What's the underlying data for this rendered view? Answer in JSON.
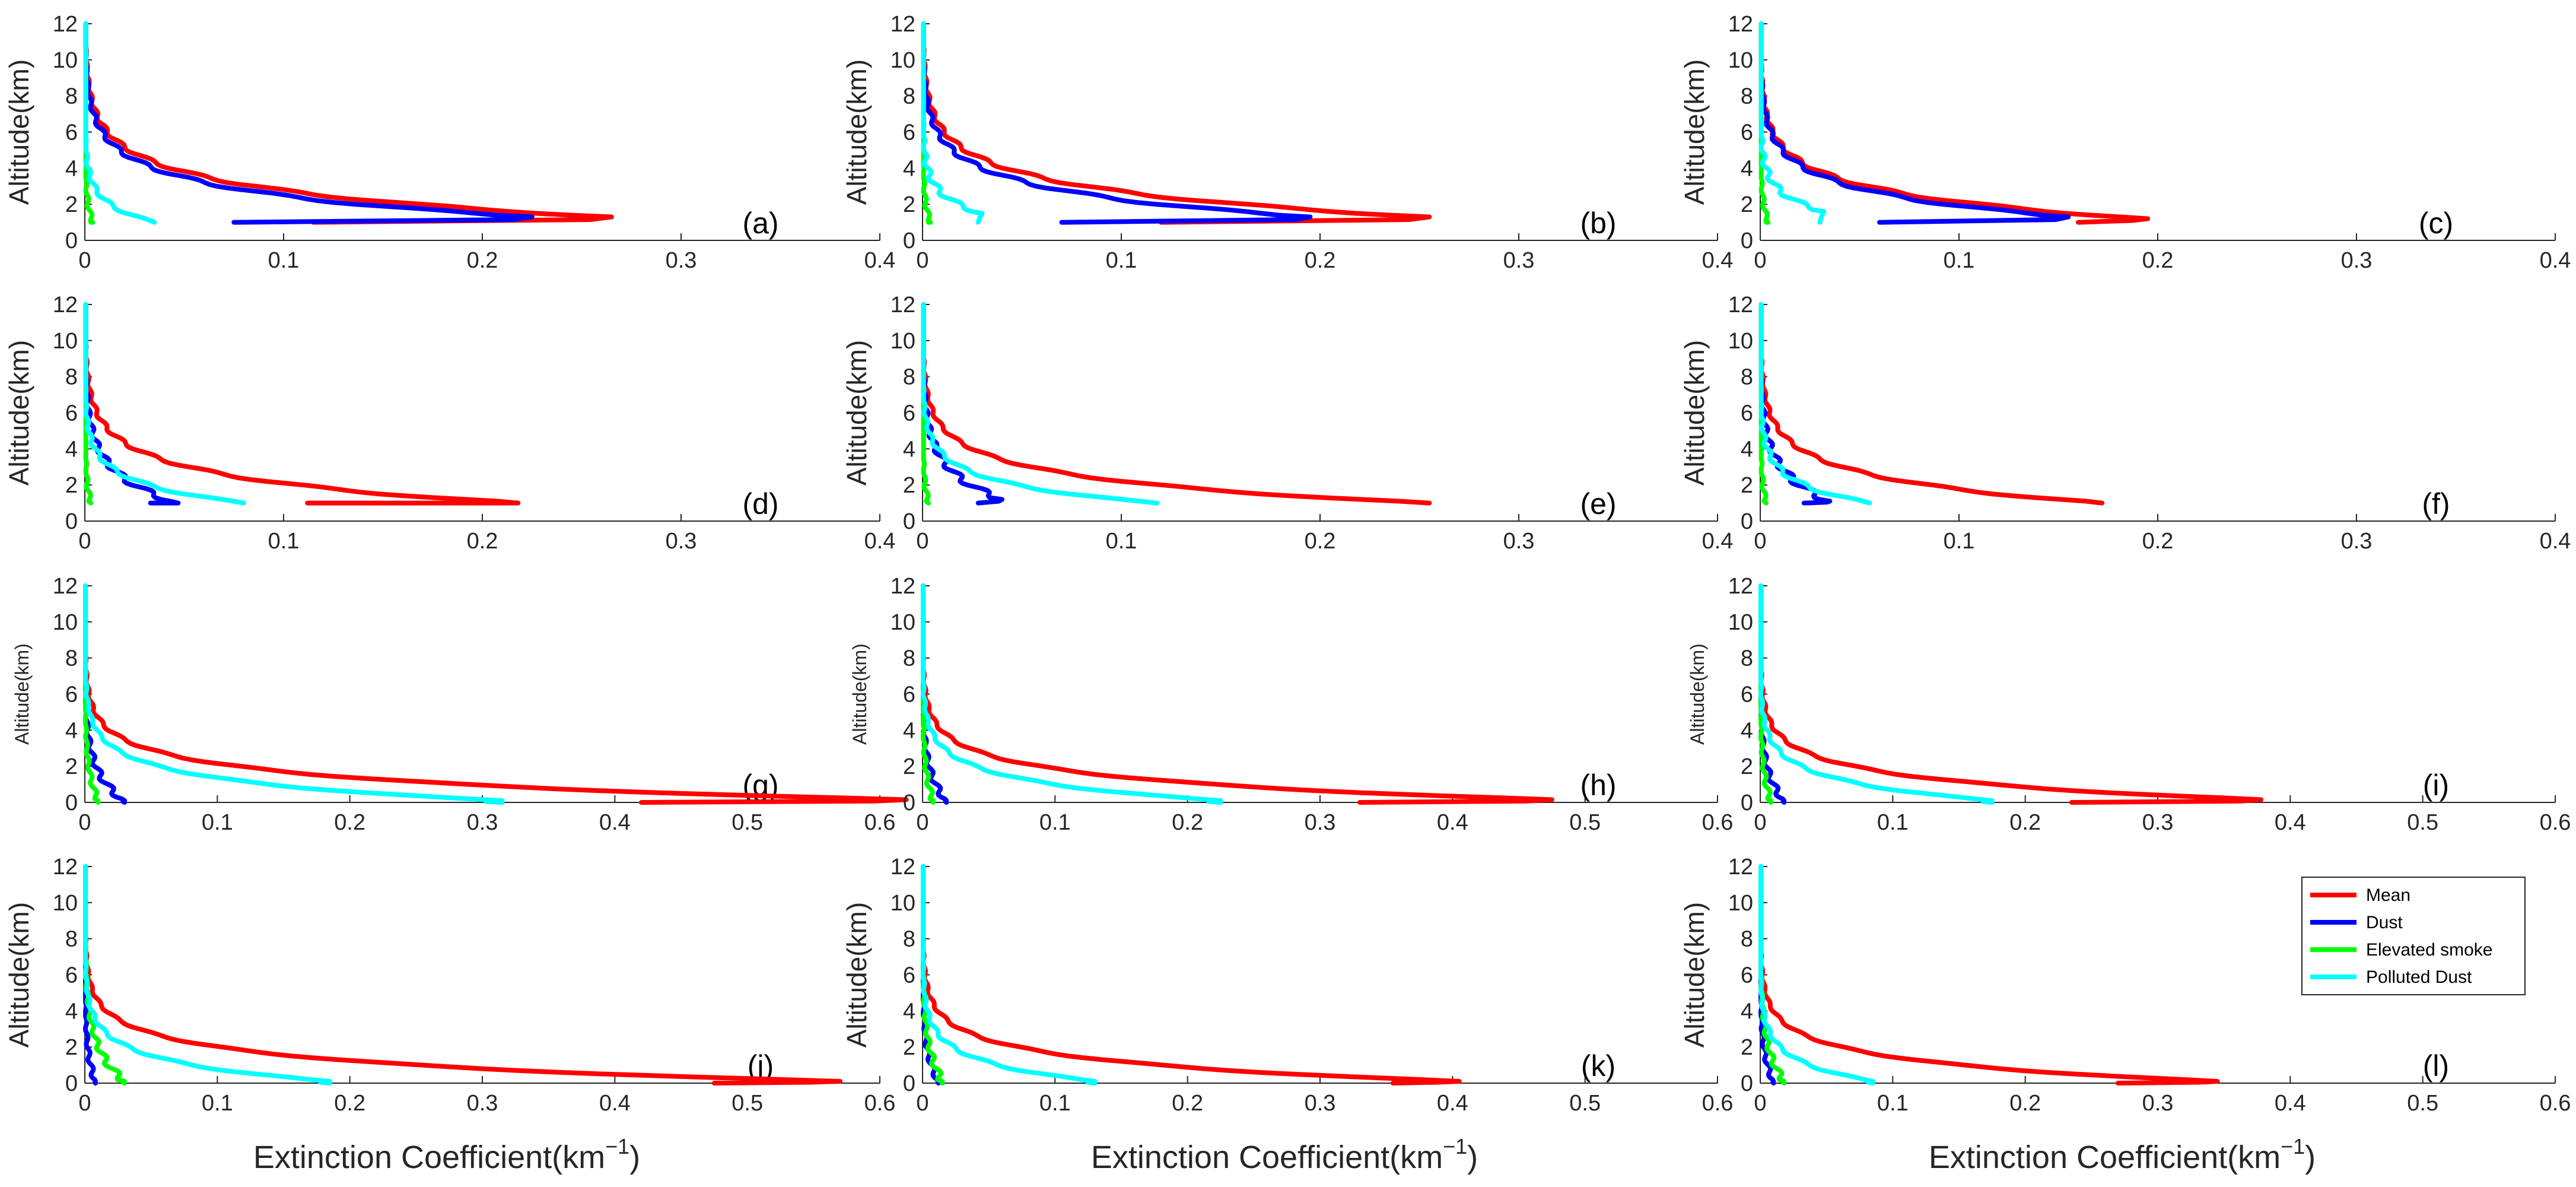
{
  "chart_data": {
    "type": "line",
    "orientation": "vertical-profile",
    "xlabel": "Extinction Coefficient(km",
    "xlabel_unit_sup": "−1",
    "xlabel_close": ")",
    "ylabel": "Altitude(km)",
    "yticks": [
      "0",
      "2",
      "4",
      "6",
      "8",
      "10",
      "12"
    ],
    "ylim": [
      0,
      12
    ],
    "legend": {
      "placement": "right, bottom row",
      "entries": [
        {
          "name": "Mean",
          "color": "#ff0000"
        },
        {
          "name": "Dust",
          "color": "#0000ff"
        },
        {
          "name": "Elevated smoke",
          "color": "#00ff00"
        },
        {
          "name": "Polluted Dust",
          "color": "#00ffff"
        }
      ]
    },
    "panels": [
      {
        "label": "(a)",
        "xlim": [
          0,
          0.4
        ],
        "xticks": [
          "0",
          "0.1",
          "0.2",
          "0.3",
          "0.4"
        ],
        "bottom": 1,
        "series": [
          {
            "name": "Mean",
            "peak": 0.265,
            "base_alt": 1.3,
            "surface": 0.115,
            "scale": 1.5,
            "wiggle": 0.006
          },
          {
            "name": "Dust",
            "peak": 0.225,
            "base_alt": 1.3,
            "surface": 0.075,
            "scale": 1.45,
            "wiggle": 0.006
          },
          {
            "name": "Elevated smoke",
            "peak": 0.004,
            "base_alt": 1.0,
            "surface": 0.003,
            "scale": 1.2,
            "wiggle": 0.001
          },
          {
            "name": "Polluted Dust",
            "peak": 0.035,
            "base_alt": 1.0,
            "surface": 0.035,
            "scale": 1.0,
            "wiggle": 0.002
          }
        ]
      },
      {
        "label": "(b)",
        "xlim": [
          0,
          0.4
        ],
        "xticks": [
          "0",
          "0.1",
          "0.2",
          "0.3",
          "0.4"
        ],
        "bottom": 1,
        "series": [
          {
            "name": "Mean",
            "peak": 0.255,
            "base_alt": 1.3,
            "surface": 0.12,
            "scale": 1.5,
            "wiggle": 0.006
          },
          {
            "name": "Dust",
            "peak": 0.195,
            "base_alt": 1.3,
            "surface": 0.07,
            "scale": 1.45,
            "wiggle": 0.006
          },
          {
            "name": "Elevated smoke",
            "peak": 0.004,
            "base_alt": 1.0,
            "surface": 0.003,
            "scale": 1.2,
            "wiggle": 0.001
          },
          {
            "name": "Polluted Dust",
            "peak": 0.03,
            "base_alt": 1.5,
            "surface": 0.028,
            "scale": 1.0,
            "wiggle": 0.003
          }
        ]
      },
      {
        "label": "(c)",
        "xlim": [
          0,
          0.4
        ],
        "xticks": [
          "0",
          "0.1",
          "0.2",
          "0.3",
          "0.4"
        ],
        "bottom": 1,
        "series": [
          {
            "name": "Mean",
            "peak": 0.195,
            "base_alt": 1.2,
            "surface": 0.16,
            "scale": 1.4,
            "wiggle": 0.005
          },
          {
            "name": "Dust",
            "peak": 0.155,
            "base_alt": 1.3,
            "surface": 0.06,
            "scale": 1.4,
            "wiggle": 0.005
          },
          {
            "name": "Elevated smoke",
            "peak": 0.004,
            "base_alt": 1.0,
            "surface": 0.003,
            "scale": 1.2,
            "wiggle": 0.001
          },
          {
            "name": "Polluted Dust",
            "peak": 0.032,
            "base_alt": 1.6,
            "surface": 0.03,
            "scale": 1.0,
            "wiggle": 0.003
          }
        ]
      },
      {
        "label": "(d)",
        "xlim": [
          0,
          0.4
        ],
        "xticks": [
          "0",
          "0.1",
          "0.2",
          "0.3",
          "0.4"
        ],
        "bottom": 1,
        "series": [
          {
            "name": "Mean",
            "peak": 0.218,
            "base_alt": 1.0,
            "surface": 0.112,
            "scale": 1.4,
            "wiggle": 0.005
          },
          {
            "name": "Dust",
            "peak": 0.047,
            "base_alt": 1.0,
            "surface": 0.033,
            "scale": 1.6,
            "wiggle": 0.004
          },
          {
            "name": "Elevated smoke",
            "peak": 0.003,
            "base_alt": 1.0,
            "surface": 0.003,
            "scale": 1.2,
            "wiggle": 0.001
          },
          {
            "name": "Polluted Dust",
            "peak": 0.08,
            "base_alt": 1.0,
            "surface": 0.08,
            "scale": 1.1,
            "wiggle": 0.003
          }
        ]
      },
      {
        "label": "(e)",
        "xlim": [
          0,
          0.4
        ],
        "xticks": [
          "0",
          "0.1",
          "0.2",
          "0.3",
          "0.4"
        ],
        "bottom": 1,
        "series": [
          {
            "name": "Mean",
            "peak": 0.255,
            "base_alt": 1.0,
            "surface": 0.255,
            "scale": 1.3,
            "wiggle": 0.004
          },
          {
            "name": "Dust",
            "peak": 0.04,
            "base_alt": 1.2,
            "surface": 0.028,
            "scale": 1.6,
            "wiggle": 0.004
          },
          {
            "name": "Elevated smoke",
            "peak": 0.003,
            "base_alt": 1.0,
            "surface": 0.003,
            "scale": 1.2,
            "wiggle": 0.001
          },
          {
            "name": "Polluted Dust",
            "peak": 0.118,
            "base_alt": 1.0,
            "surface": 0.118,
            "scale": 1.1,
            "wiggle": 0.003
          }
        ]
      },
      {
        "label": "(f)",
        "xlim": [
          0,
          0.4
        ],
        "xticks": [
          "0",
          "0.1",
          "0.2",
          "0.3",
          "0.4"
        ],
        "bottom": 1,
        "series": [
          {
            "name": "Mean",
            "peak": 0.172,
            "base_alt": 1.0,
            "surface": 0.172,
            "scale": 1.4,
            "wiggle": 0.004
          },
          {
            "name": "Dust",
            "peak": 0.035,
            "base_alt": 1.1,
            "surface": 0.022,
            "scale": 1.6,
            "wiggle": 0.004
          },
          {
            "name": "Elevated smoke",
            "peak": 0.003,
            "base_alt": 1.0,
            "surface": 0.003,
            "scale": 1.2,
            "wiggle": 0.001
          },
          {
            "name": "Polluted Dust",
            "peak": 0.055,
            "base_alt": 1.0,
            "surface": 0.055,
            "scale": 1.1,
            "wiggle": 0.003
          }
        ]
      },
      {
        "label": "(g)",
        "xlim": [
          0,
          0.6
        ],
        "xticks": [
          "0",
          "0.1",
          "0.2",
          "0.3",
          "0.4",
          "0.5",
          "0.6"
        ],
        "bottom": 0,
        "series": [
          {
            "name": "Mean",
            "peak": 0.62,
            "base_alt": 0.15,
            "surface": 0.42,
            "scale": 1.1,
            "wiggle": 0.006
          },
          {
            "name": "Dust",
            "peak": 0.03,
            "base_alt": 0.1,
            "surface": 0.03,
            "scale": 1.5,
            "wiggle": 0.004
          },
          {
            "name": "Elevated smoke",
            "peak": 0.01,
            "base_alt": 0.1,
            "surface": 0.01,
            "scale": 1.6,
            "wiggle": 0.002
          },
          {
            "name": "Polluted Dust",
            "peak": 0.315,
            "base_alt": 0.1,
            "surface": 0.315,
            "scale": 1.1,
            "wiggle": 0.004
          }
        ]
      },
      {
        "label": "(h)",
        "xlim": [
          0,
          0.6
        ],
        "xticks": [
          "0",
          "0.1",
          "0.2",
          "0.3",
          "0.4",
          "0.5",
          "0.6"
        ],
        "bottom": 0,
        "series": [
          {
            "name": "Mean",
            "peak": 0.475,
            "base_alt": 0.15,
            "surface": 0.33,
            "scale": 1.1,
            "wiggle": 0.005
          },
          {
            "name": "Dust",
            "peak": 0.018,
            "base_alt": 0.1,
            "surface": 0.018,
            "scale": 1.5,
            "wiggle": 0.003
          },
          {
            "name": "Elevated smoke",
            "peak": 0.008,
            "base_alt": 0.1,
            "surface": 0.008,
            "scale": 1.6,
            "wiggle": 0.002
          },
          {
            "name": "Polluted Dust",
            "peak": 0.225,
            "base_alt": 0.1,
            "surface": 0.225,
            "scale": 1.1,
            "wiggle": 0.004
          }
        ]
      },
      {
        "label": "(i)",
        "xlim": [
          0,
          0.6
        ],
        "xticks": [
          "0",
          "0.1",
          "0.2",
          "0.3",
          "0.4",
          "0.5",
          "0.6"
        ],
        "bottom": 0,
        "series": [
          {
            "name": "Mean",
            "peak": 0.378,
            "base_alt": 0.15,
            "surface": 0.235,
            "scale": 1.1,
            "wiggle": 0.005
          },
          {
            "name": "Dust",
            "peak": 0.018,
            "base_alt": 0.1,
            "surface": 0.018,
            "scale": 1.5,
            "wiggle": 0.003
          },
          {
            "name": "Elevated smoke",
            "peak": 0.008,
            "base_alt": 0.1,
            "surface": 0.008,
            "scale": 1.6,
            "wiggle": 0.002
          },
          {
            "name": "Polluted Dust",
            "peak": 0.175,
            "base_alt": 0.1,
            "surface": 0.175,
            "scale": 1.1,
            "wiggle": 0.004
          }
        ]
      },
      {
        "label": "(j)",
        "xlim": [
          0,
          0.6
        ],
        "xticks": [
          "0",
          "0.1",
          "0.2",
          "0.3",
          "0.4",
          "0.5",
          "0.6"
        ],
        "bottom": 0,
        "series": [
          {
            "name": "Mean",
            "peak": 0.57,
            "base_alt": 0.1,
            "surface": 0.475,
            "scale": 1.1,
            "wiggle": 0.005
          },
          {
            "name": "Dust",
            "peak": 0.008,
            "base_alt": 0.1,
            "surface": 0.008,
            "scale": 1.5,
            "wiggle": 0.002
          },
          {
            "name": "Elevated smoke",
            "peak": 0.03,
            "base_alt": 0.1,
            "surface": 0.03,
            "scale": 1.8,
            "wiggle": 0.004
          },
          {
            "name": "Polluted Dust",
            "peak": 0.185,
            "base_alt": 0.1,
            "surface": 0.185,
            "scale": 1.1,
            "wiggle": 0.004
          }
        ]
      },
      {
        "label": "(k)",
        "xlim": [
          0,
          0.6
        ],
        "xticks": [
          "0",
          "0.1",
          "0.2",
          "0.3",
          "0.4",
          "0.5",
          "0.6"
        ],
        "bottom": 0,
        "series": [
          {
            "name": "Mean",
            "peak": 0.405,
            "base_alt": 0.1,
            "surface": 0.355,
            "scale": 1.1,
            "wiggle": 0.005
          },
          {
            "name": "Dust",
            "peak": 0.012,
            "base_alt": 0.1,
            "surface": 0.012,
            "scale": 1.5,
            "wiggle": 0.002
          },
          {
            "name": "Elevated smoke",
            "peak": 0.015,
            "base_alt": 0.1,
            "surface": 0.015,
            "scale": 1.8,
            "wiggle": 0.003
          },
          {
            "name": "Polluted Dust",
            "peak": 0.13,
            "base_alt": 0.1,
            "surface": 0.13,
            "scale": 1.1,
            "wiggle": 0.004
          }
        ]
      },
      {
        "label": "(l)",
        "xlim": [
          0,
          0.6
        ],
        "xticks": [
          "0",
          "0.1",
          "0.2",
          "0.3",
          "0.4",
          "0.5",
          "0.6"
        ],
        "bottom": 0,
        "series": [
          {
            "name": "Mean",
            "peak": 0.345,
            "base_alt": 0.1,
            "surface": 0.27,
            "scale": 1.1,
            "wiggle": 0.004
          },
          {
            "name": "Dust",
            "peak": 0.01,
            "base_alt": 0.1,
            "surface": 0.01,
            "scale": 1.5,
            "wiggle": 0.002
          },
          {
            "name": "Elevated smoke",
            "peak": 0.018,
            "base_alt": 0.1,
            "surface": 0.018,
            "scale": 1.8,
            "wiggle": 0.003
          },
          {
            "name": "Polluted Dust",
            "peak": 0.085,
            "base_alt": 0.1,
            "surface": 0.085,
            "scale": 1.1,
            "wiggle": 0.003
          }
        ]
      }
    ]
  }
}
